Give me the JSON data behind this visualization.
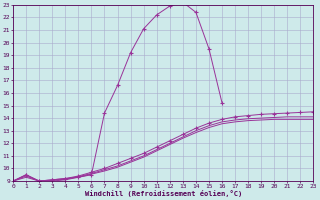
{
  "title": "",
  "xlabel": "Windchill (Refroidissement éolien,°C)",
  "xlim": [
    0,
    23
  ],
  "ylim": [
    9,
    23
  ],
  "xticks": [
    0,
    1,
    2,
    3,
    4,
    5,
    6,
    7,
    8,
    9,
    10,
    11,
    12,
    13,
    14,
    15,
    16,
    17,
    18,
    19,
    20,
    21,
    22,
    23
  ],
  "yticks": [
    9,
    10,
    11,
    12,
    13,
    14,
    15,
    16,
    17,
    18,
    19,
    20,
    21,
    22,
    23
  ],
  "background_color": "#ceeaea",
  "grid_color": "#aaaacc",
  "line_color": "#993399",
  "curves": [
    {
      "x": [
        0,
        1,
        2,
        3,
        4,
        5,
        6,
        7,
        8,
        9,
        10,
        11,
        12,
        13,
        14,
        15,
        16
      ],
      "y": [
        9.0,
        9.5,
        9.0,
        9.1,
        9.2,
        9.3,
        9.5,
        14.4,
        16.6,
        19.2,
        21.1,
        22.2,
        22.9,
        23.2,
        22.4,
        19.5,
        15.2
      ],
      "markers": true
    },
    {
      "x": [
        0,
        1,
        2,
        3,
        4,
        5,
        6,
        7,
        8,
        9,
        10,
        11,
        12,
        13,
        14,
        15,
        16,
        17,
        18,
        19,
        20,
        21,
        22,
        23
      ],
      "y": [
        9.0,
        9.5,
        9.0,
        9.1,
        9.2,
        9.4,
        9.7,
        10.0,
        10.4,
        10.8,
        11.2,
        11.7,
        12.2,
        12.7,
        13.2,
        13.6,
        13.9,
        14.1,
        14.2,
        14.3,
        14.35,
        14.4,
        14.45,
        14.5
      ],
      "markers": true
    },
    {
      "x": [
        0,
        1,
        2,
        3,
        4,
        5,
        6,
        7,
        8,
        9,
        10,
        11,
        12,
        13,
        14,
        15,
        16,
        17,
        18,
        19,
        20,
        21,
        22,
        23
      ],
      "y": [
        9.0,
        9.4,
        9.0,
        9.05,
        9.15,
        9.35,
        9.6,
        9.9,
        10.2,
        10.6,
        11.0,
        11.5,
        12.0,
        12.5,
        13.0,
        13.4,
        13.7,
        13.85,
        13.95,
        14.0,
        14.05,
        14.1,
        14.1,
        14.1
      ],
      "markers": false
    },
    {
      "x": [
        0,
        1,
        2,
        3,
        4,
        5,
        6,
        7,
        8,
        9,
        10,
        11,
        12,
        13,
        14,
        15,
        16,
        17,
        18,
        19,
        20,
        21,
        22,
        23
      ],
      "y": [
        9.0,
        9.3,
        9.0,
        9.0,
        9.1,
        9.3,
        9.55,
        9.8,
        10.1,
        10.5,
        10.9,
        11.4,
        11.9,
        12.4,
        12.85,
        13.25,
        13.55,
        13.7,
        13.8,
        13.85,
        13.9,
        13.9,
        13.9,
        13.9
      ],
      "markers": false
    }
  ]
}
